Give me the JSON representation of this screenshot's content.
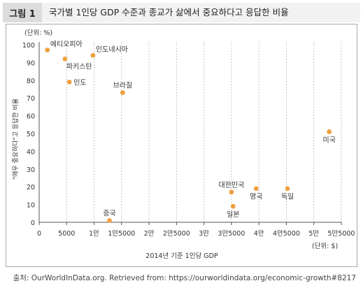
{
  "figure": {
    "badge": "그림 1",
    "title": "국가별 1인당 GDP 수준과 종교가 삶에서 중요하다고 응답한 비율"
  },
  "source": "출처: OurWorldInData.org. Retrieved from: https://ourworldindata.org/economic-growth#8217",
  "colors": {
    "point": "#f0a040",
    "grid": "#b8b8b8",
    "axis": "#555555",
    "header_bg": "#f2f2f2",
    "badge_bg": "#dcdcdc"
  },
  "chart_data": {
    "type": "scatter",
    "xlabel": "2014년 기준 1인당 GDP",
    "x_unit": "(단위: $)",
    "ylabel": "\"매우 중요하다\"고 응답한 비율",
    "y_unit": "(단위: %)",
    "xlim": [
      0,
      55000
    ],
    "ylim": [
      0,
      100
    ],
    "x_ticks": [
      {
        "value": 0,
        "label": "0"
      },
      {
        "value": 5000,
        "label": "5000"
      },
      {
        "value": 10000,
        "label": "1만"
      },
      {
        "value": 15000,
        "label": "1만5000"
      },
      {
        "value": 20000,
        "label": "2만"
      },
      {
        "value": 25000,
        "label": "2만5000"
      },
      {
        "value": 30000,
        "label": "3만"
      },
      {
        "value": 35000,
        "label": "3만5000"
      },
      {
        "value": 40000,
        "label": "4만"
      },
      {
        "value": 45000,
        "label": "4만5000"
      },
      {
        "value": 50000,
        "label": "5만"
      },
      {
        "value": 55000,
        "label": "5만5000"
      }
    ],
    "y_ticks": [
      0,
      10,
      20,
      30,
      40,
      50,
      60,
      70,
      80,
      90,
      100
    ],
    "grid": "vertical",
    "points": [
      {
        "label": "에티오피아",
        "x": 1500,
        "y": 97,
        "label_pos": "right-above"
      },
      {
        "label": "파키스탄",
        "x": 4700,
        "y": 92,
        "label_pos": "right-below"
      },
      {
        "label": "인도",
        "x": 5500,
        "y": 79,
        "label_pos": "right"
      },
      {
        "label": "인도네시아",
        "x": 9800,
        "y": 94,
        "label_pos": "right-above"
      },
      {
        "label": "브라질",
        "x": 15200,
        "y": 73,
        "label_pos": "above"
      },
      {
        "label": "중국",
        "x": 12800,
        "y": 1,
        "label_pos": "above"
      },
      {
        "label": "대한민국",
        "x": 35000,
        "y": 17,
        "label_pos": "above"
      },
      {
        "label": "일본",
        "x": 35300,
        "y": 9,
        "label_pos": "below"
      },
      {
        "label": "영국",
        "x": 39500,
        "y": 19,
        "label_pos": "below"
      },
      {
        "label": "독일",
        "x": 45200,
        "y": 19,
        "label_pos": "below"
      },
      {
        "label": "미국",
        "x": 52800,
        "y": 51,
        "label_pos": "below"
      }
    ]
  }
}
